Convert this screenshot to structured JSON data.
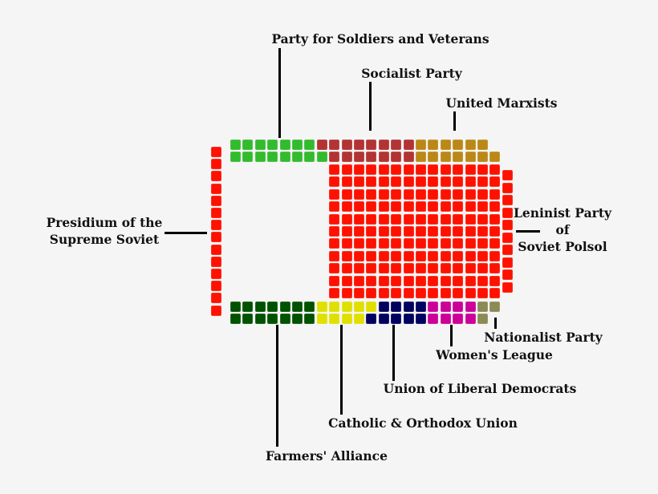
{
  "parties": [
    {
      "id": "presidium",
      "lines": [
        "Presidium of the",
        "Supreme Soviet"
      ],
      "seats": 14,
      "color": "#ff1100"
    },
    {
      "id": "soldiers",
      "lines": [
        "Party for Soldiers and Veterans"
      ],
      "seats": 15,
      "color": "#33bb2e"
    },
    {
      "id": "socialist",
      "lines": [
        "Socialist Party"
      ],
      "seats": 15,
      "color": "#b33333"
    },
    {
      "id": "marxists",
      "lines": [
        "United Marxists"
      ],
      "seats": 13,
      "color": "#bb8818"
    },
    {
      "id": "leninist",
      "lines": [
        "Leninist Party",
        "of",
        "Soviet Polsol"
      ],
      "seats": 164,
      "color": "#ff1100"
    },
    {
      "id": "farmers",
      "lines": [
        "Farmers' Alliance"
      ],
      "seats": 14,
      "color": "#005200"
    },
    {
      "id": "catholic",
      "lines": [
        "Catholic & Orthodox Union"
      ],
      "seats": 9,
      "color": "#e0e000"
    },
    {
      "id": "liberal",
      "lines": [
        "Union of Liberal Democrats"
      ],
      "seats": 9,
      "color": "#000060"
    },
    {
      "id": "women",
      "lines": [
        "Women's League"
      ],
      "seats": 8,
      "color": "#cc0099"
    },
    {
      "id": "nationalist",
      "lines": [
        "Nationalist Party"
      ],
      "seats": 3,
      "color": "#8c8a55"
    }
  ]
}
